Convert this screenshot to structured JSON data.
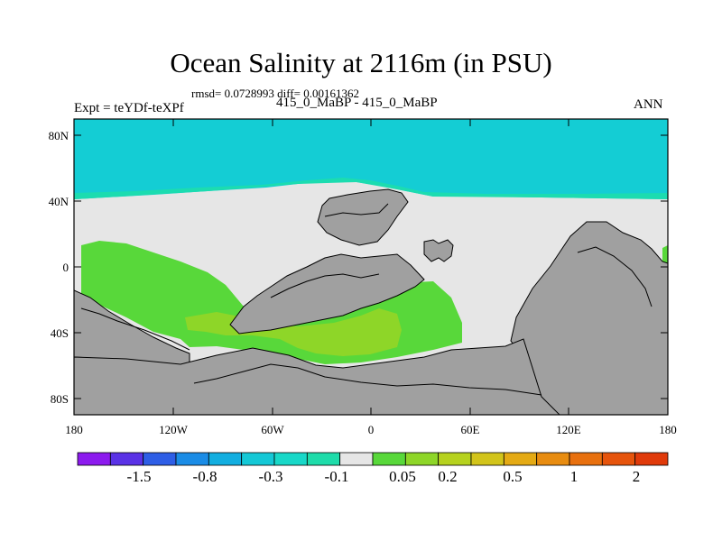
{
  "header": {
    "title": "Ocean Salinity at 2116m (in PSU)",
    "stats": "rmsd= 0.0728993 diff= 0.00161362",
    "experiment": "Expt = teYDf-teXPf",
    "runs": "415_0_MaBP - 415_0_MaBP",
    "season": "ANN"
  },
  "axes": {
    "x_labels": [
      "180",
      "120W",
      "60W",
      "0",
      "60E",
      "120E",
      "180"
    ],
    "y_labels": [
      "80N",
      "40N",
      "0",
      "40S",
      "80S"
    ]
  },
  "colorbar": {
    "colors": [
      "#8c1aee",
      "#5a32e6",
      "#2e5ee6",
      "#1a8ce6",
      "#12aee0",
      "#14c8d6",
      "#18d8c8",
      "#1edcaa",
      "#e6e6e6",
      "#58d83a",
      "#8ed628",
      "#b6d21e",
      "#d2c41a",
      "#e4aa14",
      "#e88c10",
      "#e8700e",
      "#e6540c",
      "#e03a0a"
    ],
    "labels": [
      "-1.5",
      "-0.8",
      "-0.3",
      "-0.1",
      "0.05",
      "0.2",
      "0.5",
      "1",
      "2"
    ]
  },
  "map_colors": {
    "north_band": "#14cdd4",
    "north_mid": "#1cdcb0",
    "ocean_neutral": "#e6e6e6",
    "land": "#a0a0a0",
    "green": "#58d83a",
    "yellow_green": "#8ed628"
  }
}
